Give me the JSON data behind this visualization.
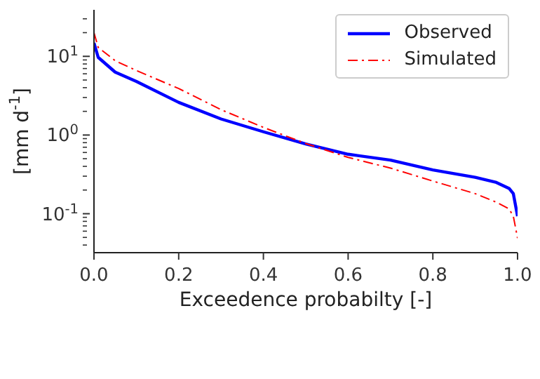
{
  "chart_data": {
    "type": "line",
    "xlabel": "Exceedence probabilty [-]",
    "ylabel": "[mm d$^{-1}$]",
    "log": "y",
    "x": [
      0,
      0.01,
      0.05,
      0.1,
      0.2,
      0.3,
      0.4,
      0.5,
      0.6,
      0.7,
      0.8,
      0.9,
      0.95,
      0.98,
      0.99,
      1.0
    ],
    "series": [
      {
        "name": "Observed",
        "color": "#0000ff",
        "line_style": "solid",
        "values": [
          14.8,
          9.7,
          6.3,
          4.8,
          2.6,
          1.6,
          1.1,
          0.77,
          0.57,
          0.48,
          0.36,
          0.29,
          0.25,
          0.21,
          0.18,
          0.093
        ]
      },
      {
        "name": "Simulated",
        "color": "#ff0000",
        "line_style": "dashed",
        "values": [
          20,
          13,
          8.8,
          6.6,
          3.9,
          2.1,
          1.25,
          0.78,
          0.52,
          0.38,
          0.26,
          0.18,
          0.14,
          0.115,
          0.093,
          0.049
        ]
      }
    ],
    "xlim": [
      0,
      1
    ],
    "xticks": [
      {
        "value": 0,
        "label": "0.0"
      },
      0.2,
      0.4,
      0.6,
      0.8,
      {
        "value": 1,
        "label": "1.0"
      }
    ],
    "ylim": [
      0.032,
      39
    ],
    "yticks": [
      {
        "value": 0.04,
        "label": null
      },
      {
        "value": 0.05,
        "label": null
      },
      {
        "value": 0.06,
        "label": null
      },
      {
        "value": 0.07,
        "label": null
      },
      {
        "value": 0.08,
        "label": null
      },
      {
        "value": 0.09,
        "label": null
      },
      {
        "value": 0.1,
        "label": "10$^{-1}$"
      },
      {
        "value": 0.2,
        "label": null
      },
      {
        "value": 0.3,
        "label": null
      },
      {
        "value": 0.4,
        "label": null
      },
      {
        "value": 0.5,
        "label": null
      },
      {
        "value": 0.6,
        "label": null
      },
      {
        "value": 0.7,
        "label": null
      },
      {
        "value": 0.8,
        "label": null
      },
      {
        "value": 0.9,
        "label": null
      },
      {
        "value": 1,
        "label": "10$^{0}$"
      },
      {
        "value": 2,
        "label": null
      },
      {
        "value": 3,
        "label": null
      },
      {
        "value": 4,
        "label": null
      },
      {
        "value": 5,
        "label": null
      },
      {
        "value": 6,
        "label": null
      },
      {
        "value": 7,
        "label": null
      },
      {
        "value": 8,
        "label": null
      },
      {
        "value": 9,
        "label": null
      },
      {
        "value": 10,
        "label": "10$^{1}$"
      },
      {
        "value": 20,
        "label": null
      },
      {
        "value": 30,
        "label": null
      }
    ],
    "grid": false,
    "legend": "top right"
  }
}
